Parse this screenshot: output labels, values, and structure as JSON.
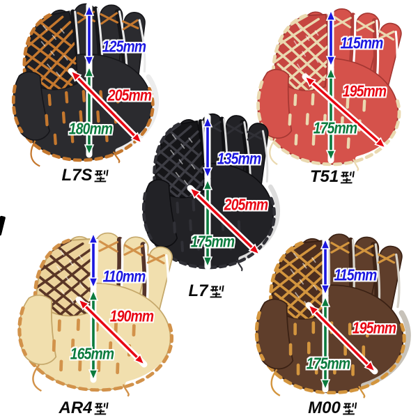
{
  "page": {
    "background": "#ffffff"
  },
  "annotation": {
    "height_color": "#1b17e0",
    "diagonal_color": "#e80613",
    "width_color": "#0b7b3e",
    "name_color": "#0a0a0a"
  },
  "gloves": [
    {
      "model": "L7S",
      "suffix": "型",
      "top_height": "125mm",
      "diagonal": "205mm",
      "bottom_height": "180mm",
      "colors": {
        "body": "#2b2b2f",
        "web": "#1f1f23",
        "lace": "#c5782e",
        "webhatch": "#c5782e",
        "trim": "#e9e9e9",
        "edge": "#16161a",
        "shade": "#17171a",
        "band": "#ececec"
      }
    },
    {
      "model": "T51",
      "suffix": "型",
      "top_height": "115mm",
      "diagonal": "195mm",
      "bottom_height": "175mm",
      "colors": {
        "body": "#d5524b",
        "web": "#c64540",
        "lace": "#ead9b0",
        "webhatch": "#ead9b0",
        "trim": "#ffffff",
        "edge": "#a43732",
        "shade": "#b03d38",
        "band": "#ffffff"
      }
    },
    {
      "model": "L7",
      "suffix": "型",
      "top_height": "135mm",
      "diagonal": "205mm",
      "bottom_height": "175mm",
      "colors": {
        "body": "#222226",
        "web": "#151518",
        "lace": "#303036",
        "webhatch": "#3d3d44",
        "trim": "#dedede",
        "edge": "#0d0d10",
        "shade": "#101013",
        "band": "#dcdcdc"
      }
    },
    {
      "model": "AR4",
      "suffix": "型",
      "top_height": "110mm",
      "diagonal": "190mm",
      "bottom_height": "165mm",
      "colors": {
        "body": "#f1dfae",
        "web": "#ecd39c",
        "lace": "#d2924a",
        "webhatch": "#5a3626",
        "trim": "#ffffff",
        "edge": "#c5a86b",
        "shade": "#54342a",
        "band": "#ffffff"
      }
    },
    {
      "model": "M00",
      "suffix": "型",
      "top_height": "115mm",
      "diagonal": "195mm",
      "bottom_height": "175mm",
      "colors": {
        "body": "#5f3e2b",
        "web": "#4c2e1f",
        "lace": "#d3953e",
        "webhatch": "#d3953e",
        "trim": "#d6d2c9",
        "edge": "#3a2114",
        "shade": "#3f2517",
        "band": "#c7c2b9"
      }
    }
  ]
}
